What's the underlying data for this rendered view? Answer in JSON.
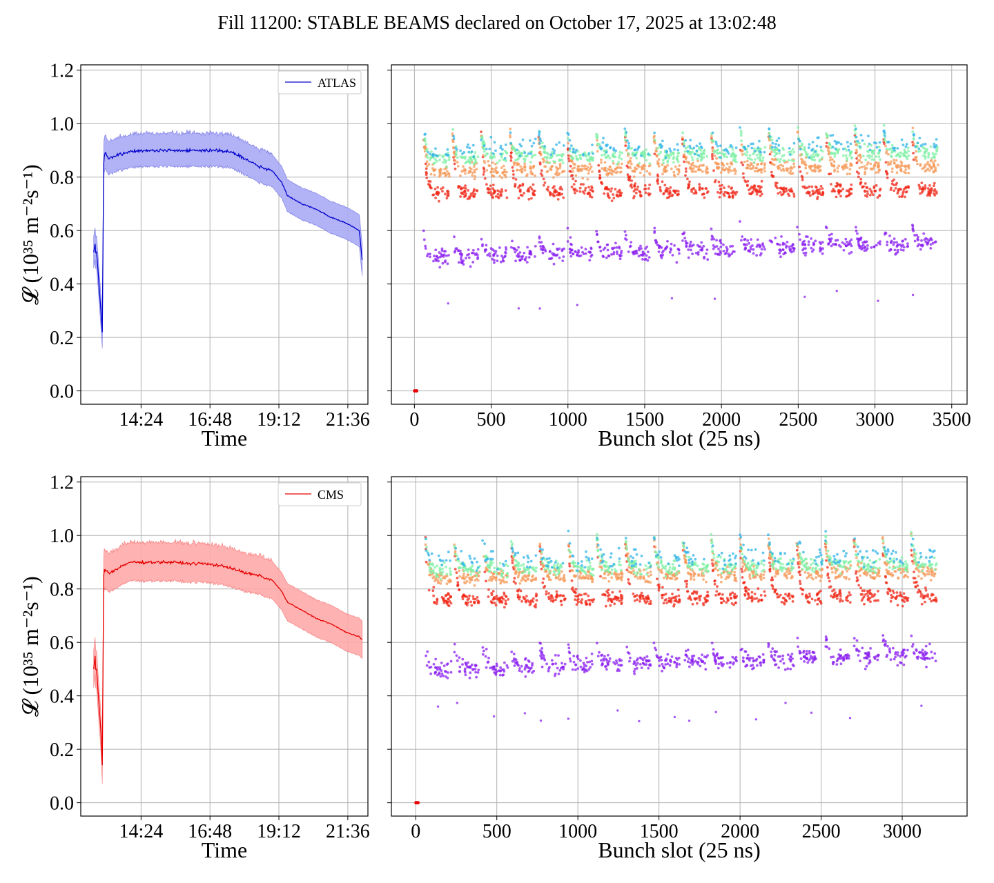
{
  "figure": {
    "title": "Fill 11200: STABLE BEAMS declared on October 17, 2025 at 13:02:48"
  },
  "colors": {
    "atlas": "#0000cc",
    "atlas_band": "#aaaaf5",
    "cms": "#e60000",
    "cms_band": "#ffaaaa",
    "grid": "#b0b0b0"
  },
  "chart_data": [
    {
      "type": "line",
      "panel": "atlas-time",
      "xlabel": "Time",
      "ylabel": "𝓛 (10³⁵ m⁻²s⁻¹)",
      "x_ticks": [
        "14:24",
        "16:48",
        "19:12",
        "21:36"
      ],
      "x_ticks_hours": [
        14.4,
        16.8,
        19.2,
        21.6
      ],
      "xlim_hours": [
        12.3,
        22.3
      ],
      "ylim": [
        -0.05,
        1.22
      ],
      "y_ticks": [
        "0.0",
        "0.2",
        "0.4",
        "0.6",
        "0.8",
        "1.0",
        "1.2"
      ],
      "grid": true,
      "legend": "upper right",
      "series": [
        {
          "name": "ATLAS",
          "x_hours": [
            12.75,
            12.8,
            12.82,
            12.85,
            12.9,
            13.0,
            13.05,
            13.1,
            13.12,
            13.15,
            13.3,
            13.5,
            14.0,
            14.5,
            15.0,
            15.5,
            16.0,
            16.5,
            17.0,
            17.5,
            18.0,
            18.5,
            19.0,
            19.3,
            19.5,
            20.0,
            20.5,
            21.0,
            21.5,
            22.0,
            22.1
          ],
          "y": [
            0.52,
            0.55,
            0.52,
            0.52,
            0.45,
            0.3,
            0.22,
            0.85,
            0.88,
            0.89,
            0.87,
            0.88,
            0.895,
            0.9,
            0.9,
            0.9,
            0.9,
            0.9,
            0.9,
            0.895,
            0.87,
            0.84,
            0.82,
            0.78,
            0.73,
            0.7,
            0.68,
            0.65,
            0.63,
            0.6,
            0.49
          ],
          "band_width": 0.06
        }
      ]
    },
    {
      "type": "scatter",
      "panel": "atlas-bunch",
      "xlabel": "Bunch slot (25 ns)",
      "x_ticks": [
        "0",
        "500",
        "1000",
        "1500",
        "2000",
        "2500",
        "3000",
        "3500"
      ],
      "xlim": [
        -150,
        3600
      ],
      "ylim": [
        -0.05,
        1.22
      ],
      "grid": true,
      "trains": {
        "first": 60,
        "last": 3430,
        "n_groups": 18
      },
      "levels": {
        "top": 0.98,
        "upper": 0.87,
        "middle": 0.82,
        "lower": 0.74,
        "bottom": 0.5
      },
      "point_colors": [
        "#2fb3e8",
        "#7ef0a4",
        "#f59a5a",
        "#f02a1a",
        "#8a1ef0"
      ]
    },
    {
      "type": "line",
      "panel": "cms-time",
      "xlabel": "Time",
      "ylabel": "𝓛 (10³⁵ m⁻²s⁻¹)",
      "x_ticks": [
        "14:24",
        "16:48",
        "19:12",
        "21:36"
      ],
      "x_ticks_hours": [
        14.4,
        16.8,
        19.2,
        21.6
      ],
      "xlim_hours": [
        12.3,
        22.3
      ],
      "ylim": [
        -0.05,
        1.22
      ],
      "y_ticks": [
        "0.0",
        "0.2",
        "0.4",
        "0.6",
        "0.8",
        "1.0",
        "1.2"
      ],
      "grid": true,
      "legend": "upper right",
      "series": [
        {
          "name": "CMS",
          "x_hours": [
            12.75,
            12.8,
            12.82,
            12.85,
            12.9,
            13.0,
            13.05,
            13.1,
            13.12,
            13.15,
            13.3,
            13.5,
            14.0,
            14.5,
            15.0,
            15.5,
            16.0,
            16.5,
            17.0,
            17.5,
            18.0,
            18.5,
            19.0,
            19.3,
            19.5,
            20.0,
            20.5,
            21.0,
            21.5,
            22.0,
            22.1
          ],
          "y": [
            0.5,
            0.55,
            0.5,
            0.5,
            0.42,
            0.27,
            0.14,
            0.85,
            0.87,
            0.87,
            0.86,
            0.87,
            0.9,
            0.9,
            0.9,
            0.9,
            0.895,
            0.895,
            0.89,
            0.88,
            0.86,
            0.85,
            0.83,
            0.79,
            0.75,
            0.72,
            0.69,
            0.67,
            0.64,
            0.62,
            0.61
          ],
          "band_width": 0.07
        }
      ]
    },
    {
      "type": "scatter",
      "panel": "cms-bunch",
      "xlabel": "Bunch slot (25 ns)",
      "x_ticks": [
        "0",
        "500",
        "1000",
        "1500",
        "2000",
        "2500",
        "3000"
      ],
      "xlim": [
        -150,
        3400
      ],
      "ylim": [
        -0.05,
        1.22
      ],
      "grid": true,
      "trains": {
        "first": 60,
        "last": 3230,
        "n_groups": 18
      },
      "levels": {
        "top": 1.0,
        "upper": 0.87,
        "middle": 0.84,
        "lower": 0.76,
        "bottom": 0.5
      },
      "point_colors": [
        "#2fb3e8",
        "#7ef0a4",
        "#f59a5a",
        "#f02a1a",
        "#8a1ef0"
      ]
    }
  ]
}
